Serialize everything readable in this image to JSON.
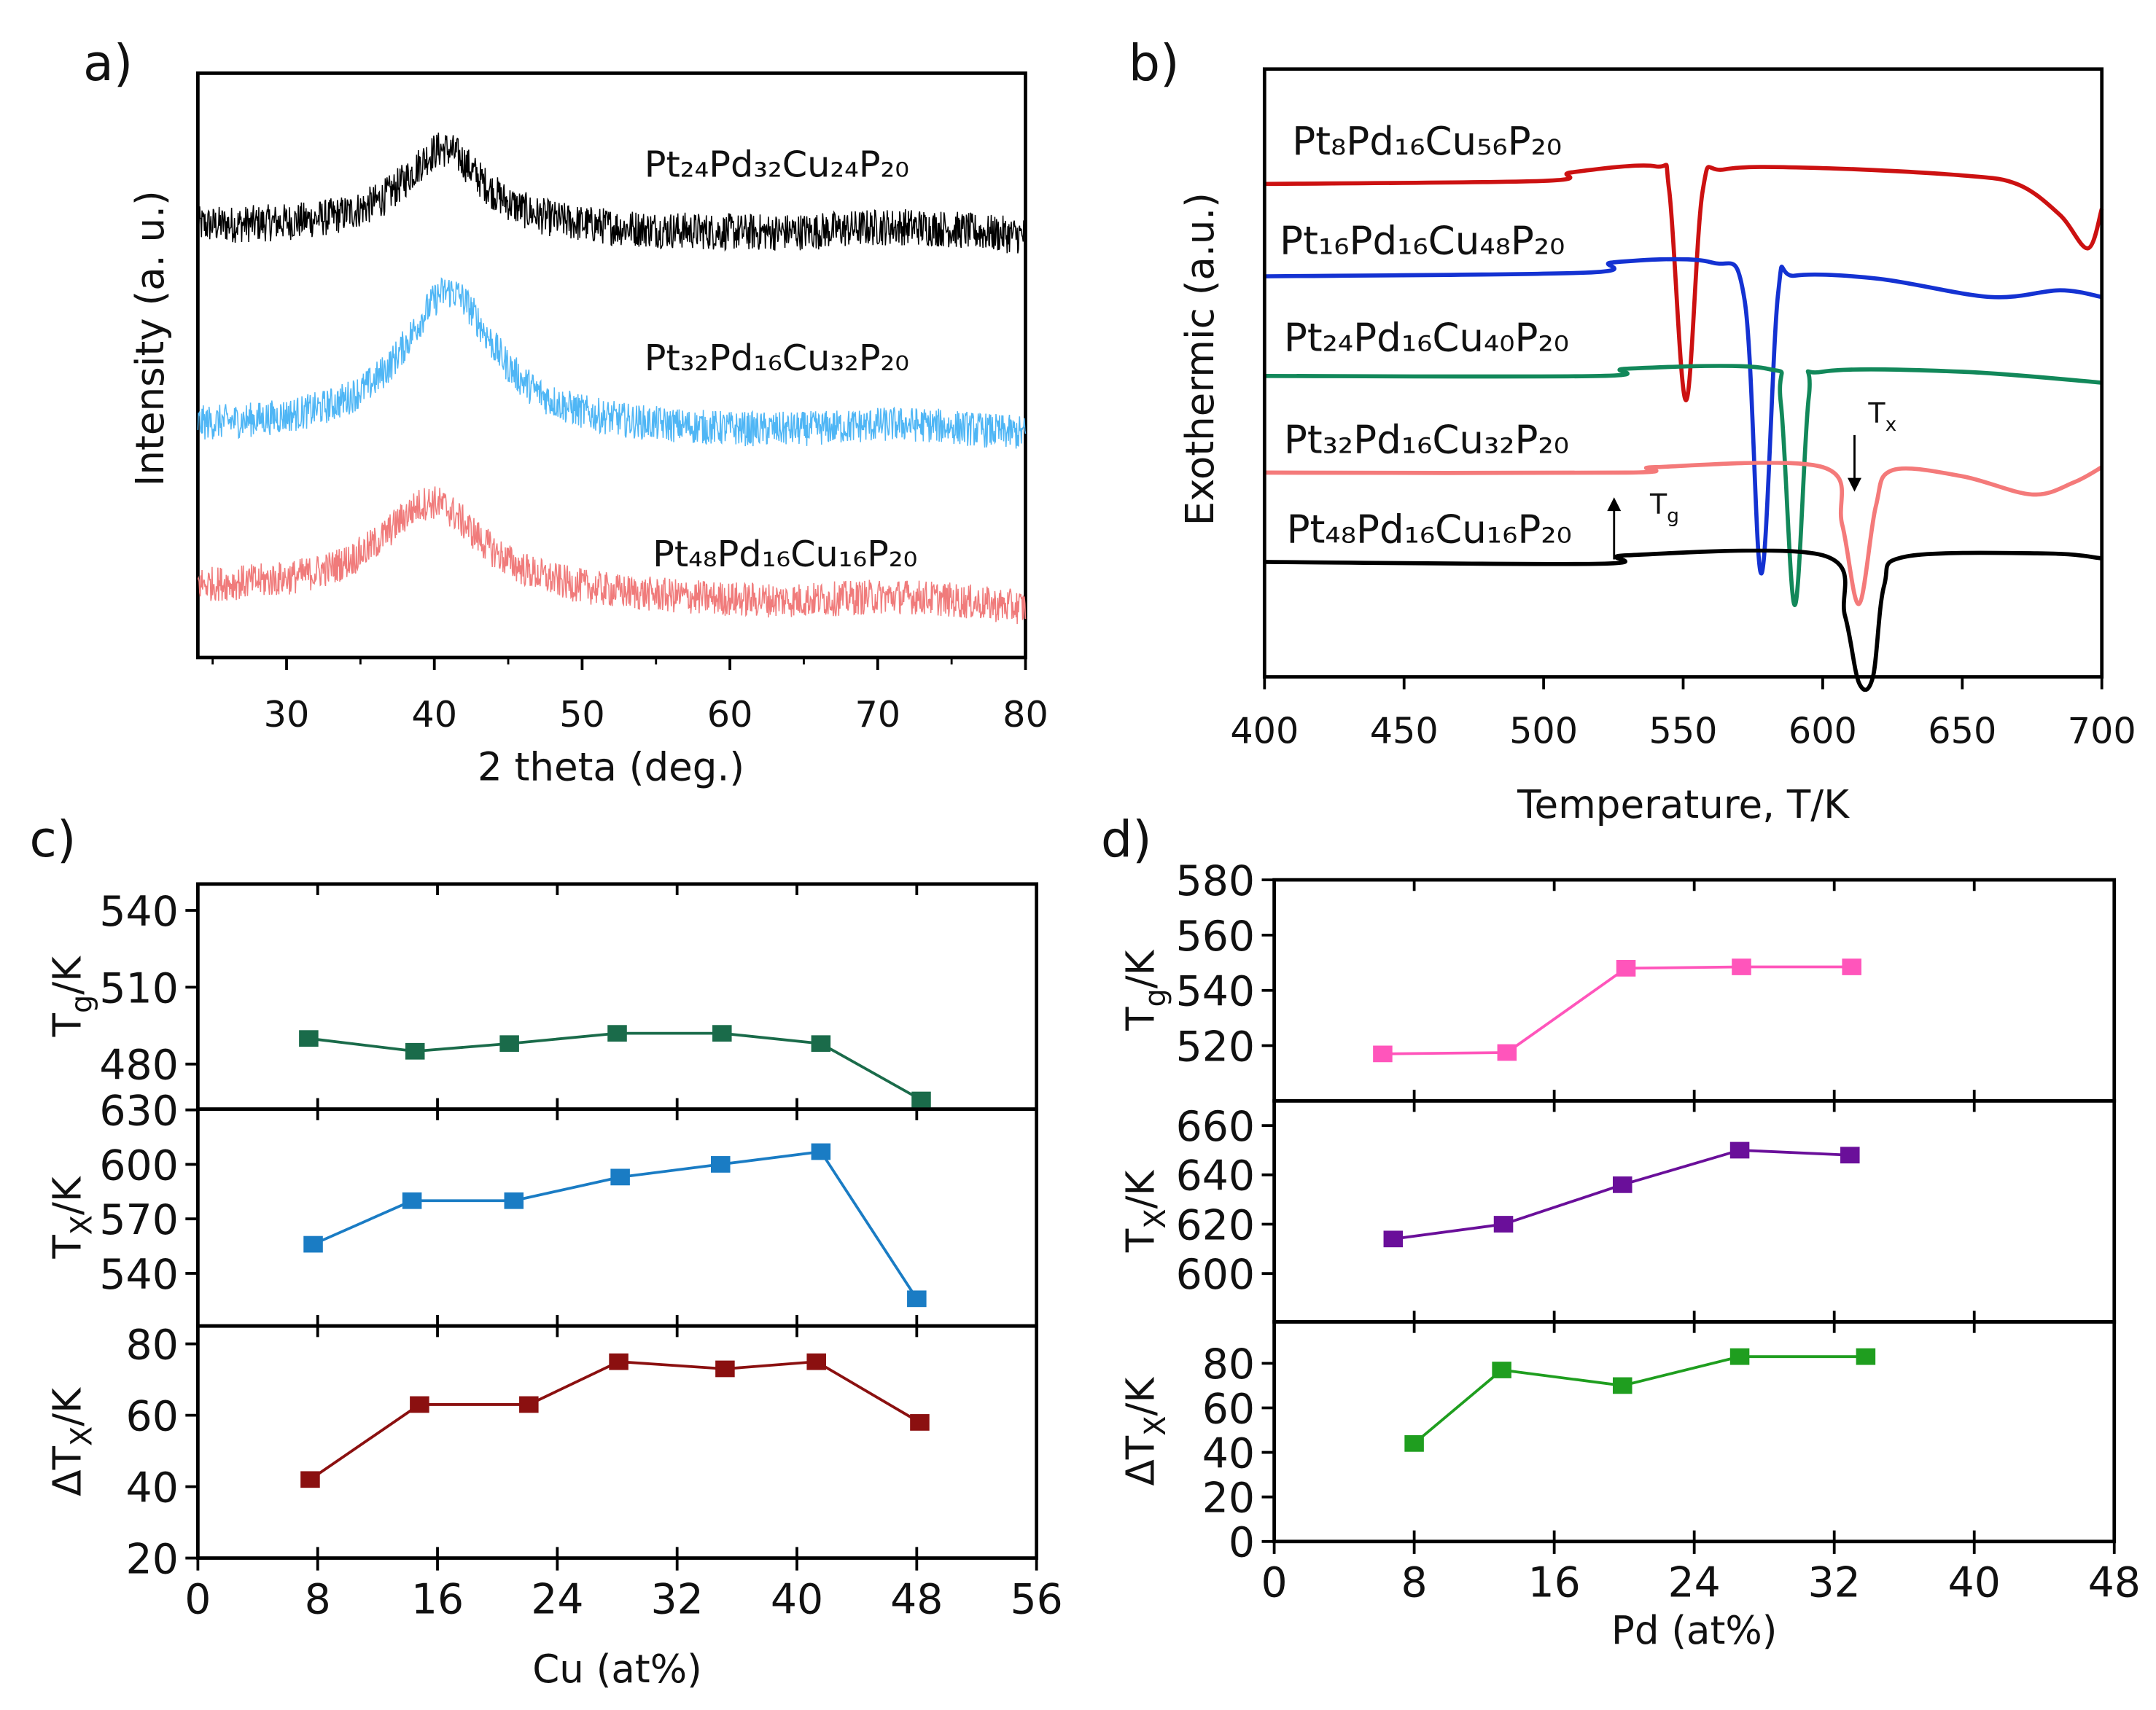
{
  "chart_data": [
    {
      "panel": "a)",
      "type": "line",
      "title": "",
      "xlabel": "2 theta (deg.)",
      "ylabel": "Intensity (a. u.)",
      "xlim": [
        24,
        80
      ],
      "ylim": [
        0,
        100
      ],
      "xticks": [
        30,
        40,
        50,
        60,
        70,
        80
      ],
      "series": [
        {
          "name": "Pt₂₄Pd₃₂Cu₂₄P₂₀",
          "color": "#000000",
          "baseline": 73.5,
          "slope": -0.03,
          "peak_center": 40.6,
          "peak_height": 14,
          "peak_width": 3.3,
          "noise": 3.2
        },
        {
          "name": "Pt₃₂Pd₁₆Cu₃₂P₂₀",
          "color": "#4fb6f5",
          "baseline": 39,
          "slope": -0.02,
          "peak_center": 41.0,
          "peak_height": 24,
          "peak_width": 3.8,
          "noise": 3.0
        },
        {
          "name": "Pt₄₈Pd₁₆Cu₁₆P₂₀",
          "color": "#f07b7b",
          "baseline": 11.5,
          "slope": -0.06,
          "peak_center": 39.8,
          "peak_height": 16,
          "peak_width": 4.2,
          "noise": 3.0
        }
      ]
    },
    {
      "panel": "b)",
      "type": "line",
      "xlabel": "Temperature, T/K",
      "ylabel": "Exothermic (a.u.)",
      "xlim": [
        400,
        700
      ],
      "ylim": [
        0,
        100
      ],
      "xticks": [
        400,
        450,
        500,
        550,
        600,
        650,
        700
      ],
      "annotations": {
        "tg": "T",
        "tg_sub": "g",
        "tx": "T",
        "tx_sub": "x"
      },
      "series": [
        {
          "name": "Pt₈Pd₁₆Cu₅₆P₂₀",
          "color": "#cc1111",
          "points": [
            [
              400,
              81.1
            ],
            [
              500,
              81.6
            ],
            [
              510,
              83
            ],
            [
              540,
              84
            ],
            [
              545,
              80
            ],
            [
              551,
              45.5
            ],
            [
              557,
              80
            ],
            [
              565,
              83.5
            ],
            [
              600,
              83.7
            ],
            [
              650,
              82.5
            ],
            [
              670,
              81
            ],
            [
              685,
              76
            ],
            [
              695,
              70.5
            ],
            [
              700,
              77
            ]
          ]
        },
        {
          "name": "Pt₁₆Pd₁₆Cu₄₈P₂₀",
          "color": "#1432d2",
          "points": [
            [
              400,
              65.9
            ],
            [
              515,
              66.5
            ],
            [
              525,
              68.2
            ],
            [
              560,
              68.2
            ],
            [
              572,
              62
            ],
            [
              578,
              17
            ],
            [
              584,
              63
            ],
            [
              590,
              66
            ],
            [
              620,
              65.5
            ],
            [
              660,
              62.5
            ],
            [
              685,
              63.6
            ],
            [
              700,
              62.5
            ]
          ]
        },
        {
          "name": "Pt₂₄Pd₁₆Cu₄₀P₂₀",
          "color": "#12885a",
          "points": [
            [
              400,
              49.5
            ],
            [
              520,
              49.5
            ],
            [
              530,
              50.7
            ],
            [
              580,
              50.7
            ],
            [
              585,
              45
            ],
            [
              590,
              11.8
            ],
            [
              595,
              46
            ],
            [
              600,
              50.2
            ],
            [
              650,
              50.2
            ],
            [
              700,
              48.4
            ]
          ]
        },
        {
          "name": "Pt₃₂Pd₁₆Cu₃₂P₂₀",
          "color": "#f47a7a",
          "points": [
            [
              400,
              33.6
            ],
            [
              530,
              33.6
            ],
            [
              540,
              34.5
            ],
            [
              600,
              34.5
            ],
            [
              607,
              25
            ],
            [
              613,
              12
            ],
            [
              619,
              28
            ],
            [
              625,
              34
            ],
            [
              650,
              33
            ],
            [
              675,
              30
            ],
            [
              690,
              32
            ],
            [
              700,
              34.5
            ]
          ]
        },
        {
          "name": "Pt₄₈Pd₁₆Cu₁₆P₂₀",
          "color": "#000000",
          "points": [
            [
              400,
              18.9
            ],
            [
              520,
              18.6
            ],
            [
              530,
              20
            ],
            [
              600,
              20
            ],
            [
              608,
              10
            ],
            [
              613,
              -1
            ],
            [
              618,
              0
            ],
            [
              622,
              15
            ],
            [
              630,
              19.8
            ],
            [
              680,
              20.3
            ],
            [
              700,
              19.5
            ]
          ]
        }
      ]
    },
    {
      "panel": "c)",
      "type": "line",
      "xlabel": "Cu (at%)",
      "xlim": [
        0,
        56
      ],
      "xticks": [
        0,
        8,
        16,
        24,
        32,
        40,
        48,
        56
      ],
      "subplots": [
        {
          "ylabel": "T",
          "ylabel_sub": "g",
          "ylabel_tail": "/K",
          "ylim": [
            462.4,
            550.3
          ],
          "yticks": [
            480,
            510,
            540
          ],
          "color": "#1a6b4a",
          "x": [
            7.4,
            14.5,
            20.8,
            28,
            35,
            41.6,
            48.3
          ],
          "y": [
            490,
            485,
            488,
            492,
            492,
            488,
            466
          ]
        },
        {
          "ylabel": "T",
          "ylabel_sub": "X",
          "ylabel_tail": "/K",
          "ylim": [
            511,
            630.4
          ],
          "yticks": [
            540,
            570,
            600,
            630
          ],
          "color": "#1a7cc4",
          "x": [
            7.7,
            14.3,
            21.1,
            28.2,
            34.9,
            41.6,
            48.0
          ],
          "y": [
            556,
            580,
            580,
            593,
            600,
            607,
            526
          ]
        },
        {
          "ylabel": "ΔT",
          "ylabel_sub": "X",
          "ylabel_tail": "/K",
          "ylim": [
            20,
            85
          ],
          "yticks": [
            20,
            40,
            60,
            80
          ],
          "color": "#8b1010",
          "x": [
            7.5,
            14.8,
            22.1,
            28.1,
            35.2,
            41.3,
            48.2
          ],
          "y": [
            42,
            63,
            63,
            75,
            73,
            75,
            58
          ]
        }
      ]
    },
    {
      "panel": "d)",
      "type": "line",
      "xlabel": "Pd (at%)",
      "xlim": [
        0,
        48
      ],
      "xticks": [
        0,
        8,
        16,
        24,
        32,
        40,
        48
      ],
      "subplots": [
        {
          "ylabel": "T",
          "ylabel_sub": "g",
          "ylabel_tail": "/K",
          "ylim": [
            500,
            580
          ],
          "yticks": [
            520,
            540,
            560,
            580
          ],
          "color": "#ff55bb",
          "x": [
            6.2,
            13.3,
            20.1,
            26.7,
            33.0
          ],
          "y": [
            517,
            517.5,
            548,
            548.5,
            548.5
          ]
        },
        {
          "ylabel": "T",
          "ylabel_sub": "X",
          "ylabel_tail": "/K",
          "ylim": [
            580.4,
            670
          ],
          "yticks": [
            600,
            620,
            640,
            660
          ],
          "color": "#6a0f9a",
          "x": [
            6.8,
            13.1,
            19.9,
            26.6,
            32.9
          ],
          "y": [
            614,
            620,
            636,
            650,
            648
          ]
        },
        {
          "ylabel": "ΔT",
          "ylabel_sub": "X",
          "ylabel_tail": "/K",
          "ylim": [
            0,
            98.6
          ],
          "yticks": [
            0,
            20,
            40,
            60,
            80
          ],
          "color": "#1f9e1f",
          "x": [
            8.0,
            13.0,
            19.9,
            26.6,
            33.8
          ],
          "y": [
            44,
            77,
            70,
            83,
            83
          ]
        }
      ]
    }
  ]
}
